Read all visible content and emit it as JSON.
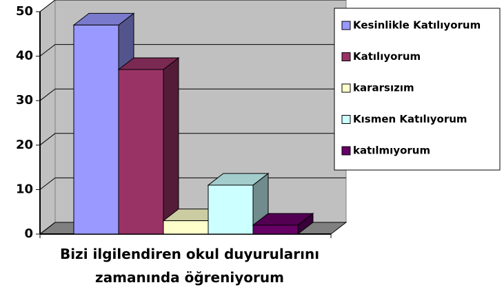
{
  "chart_data": {
    "type": "bar3d",
    "categories": [
      "Bizi ilgilendiren okul duyurularını zamanında öğreniyorum"
    ],
    "series": [
      {
        "name": "Kesinlikle Katılıyorum",
        "color": "#9999ff",
        "values": [
          47
        ]
      },
      {
        "name": "Katılıyorum",
        "color": "#993366",
        "values": [
          37
        ]
      },
      {
        "name": "kararsızım",
        "color": "#ffffcc",
        "values": [
          3
        ]
      },
      {
        "name": "Kısmen Katılıyorum",
        "color": "#ccffff",
        "values": [
          11
        ]
      },
      {
        "name": "katılmıyorum",
        "color": "#660066",
        "values": [
          2
        ]
      }
    ],
    "ylim": [
      0,
      50
    ],
    "yticks": [
      0,
      10,
      20,
      30,
      40,
      50
    ],
    "grid": true,
    "legend": "right"
  }
}
